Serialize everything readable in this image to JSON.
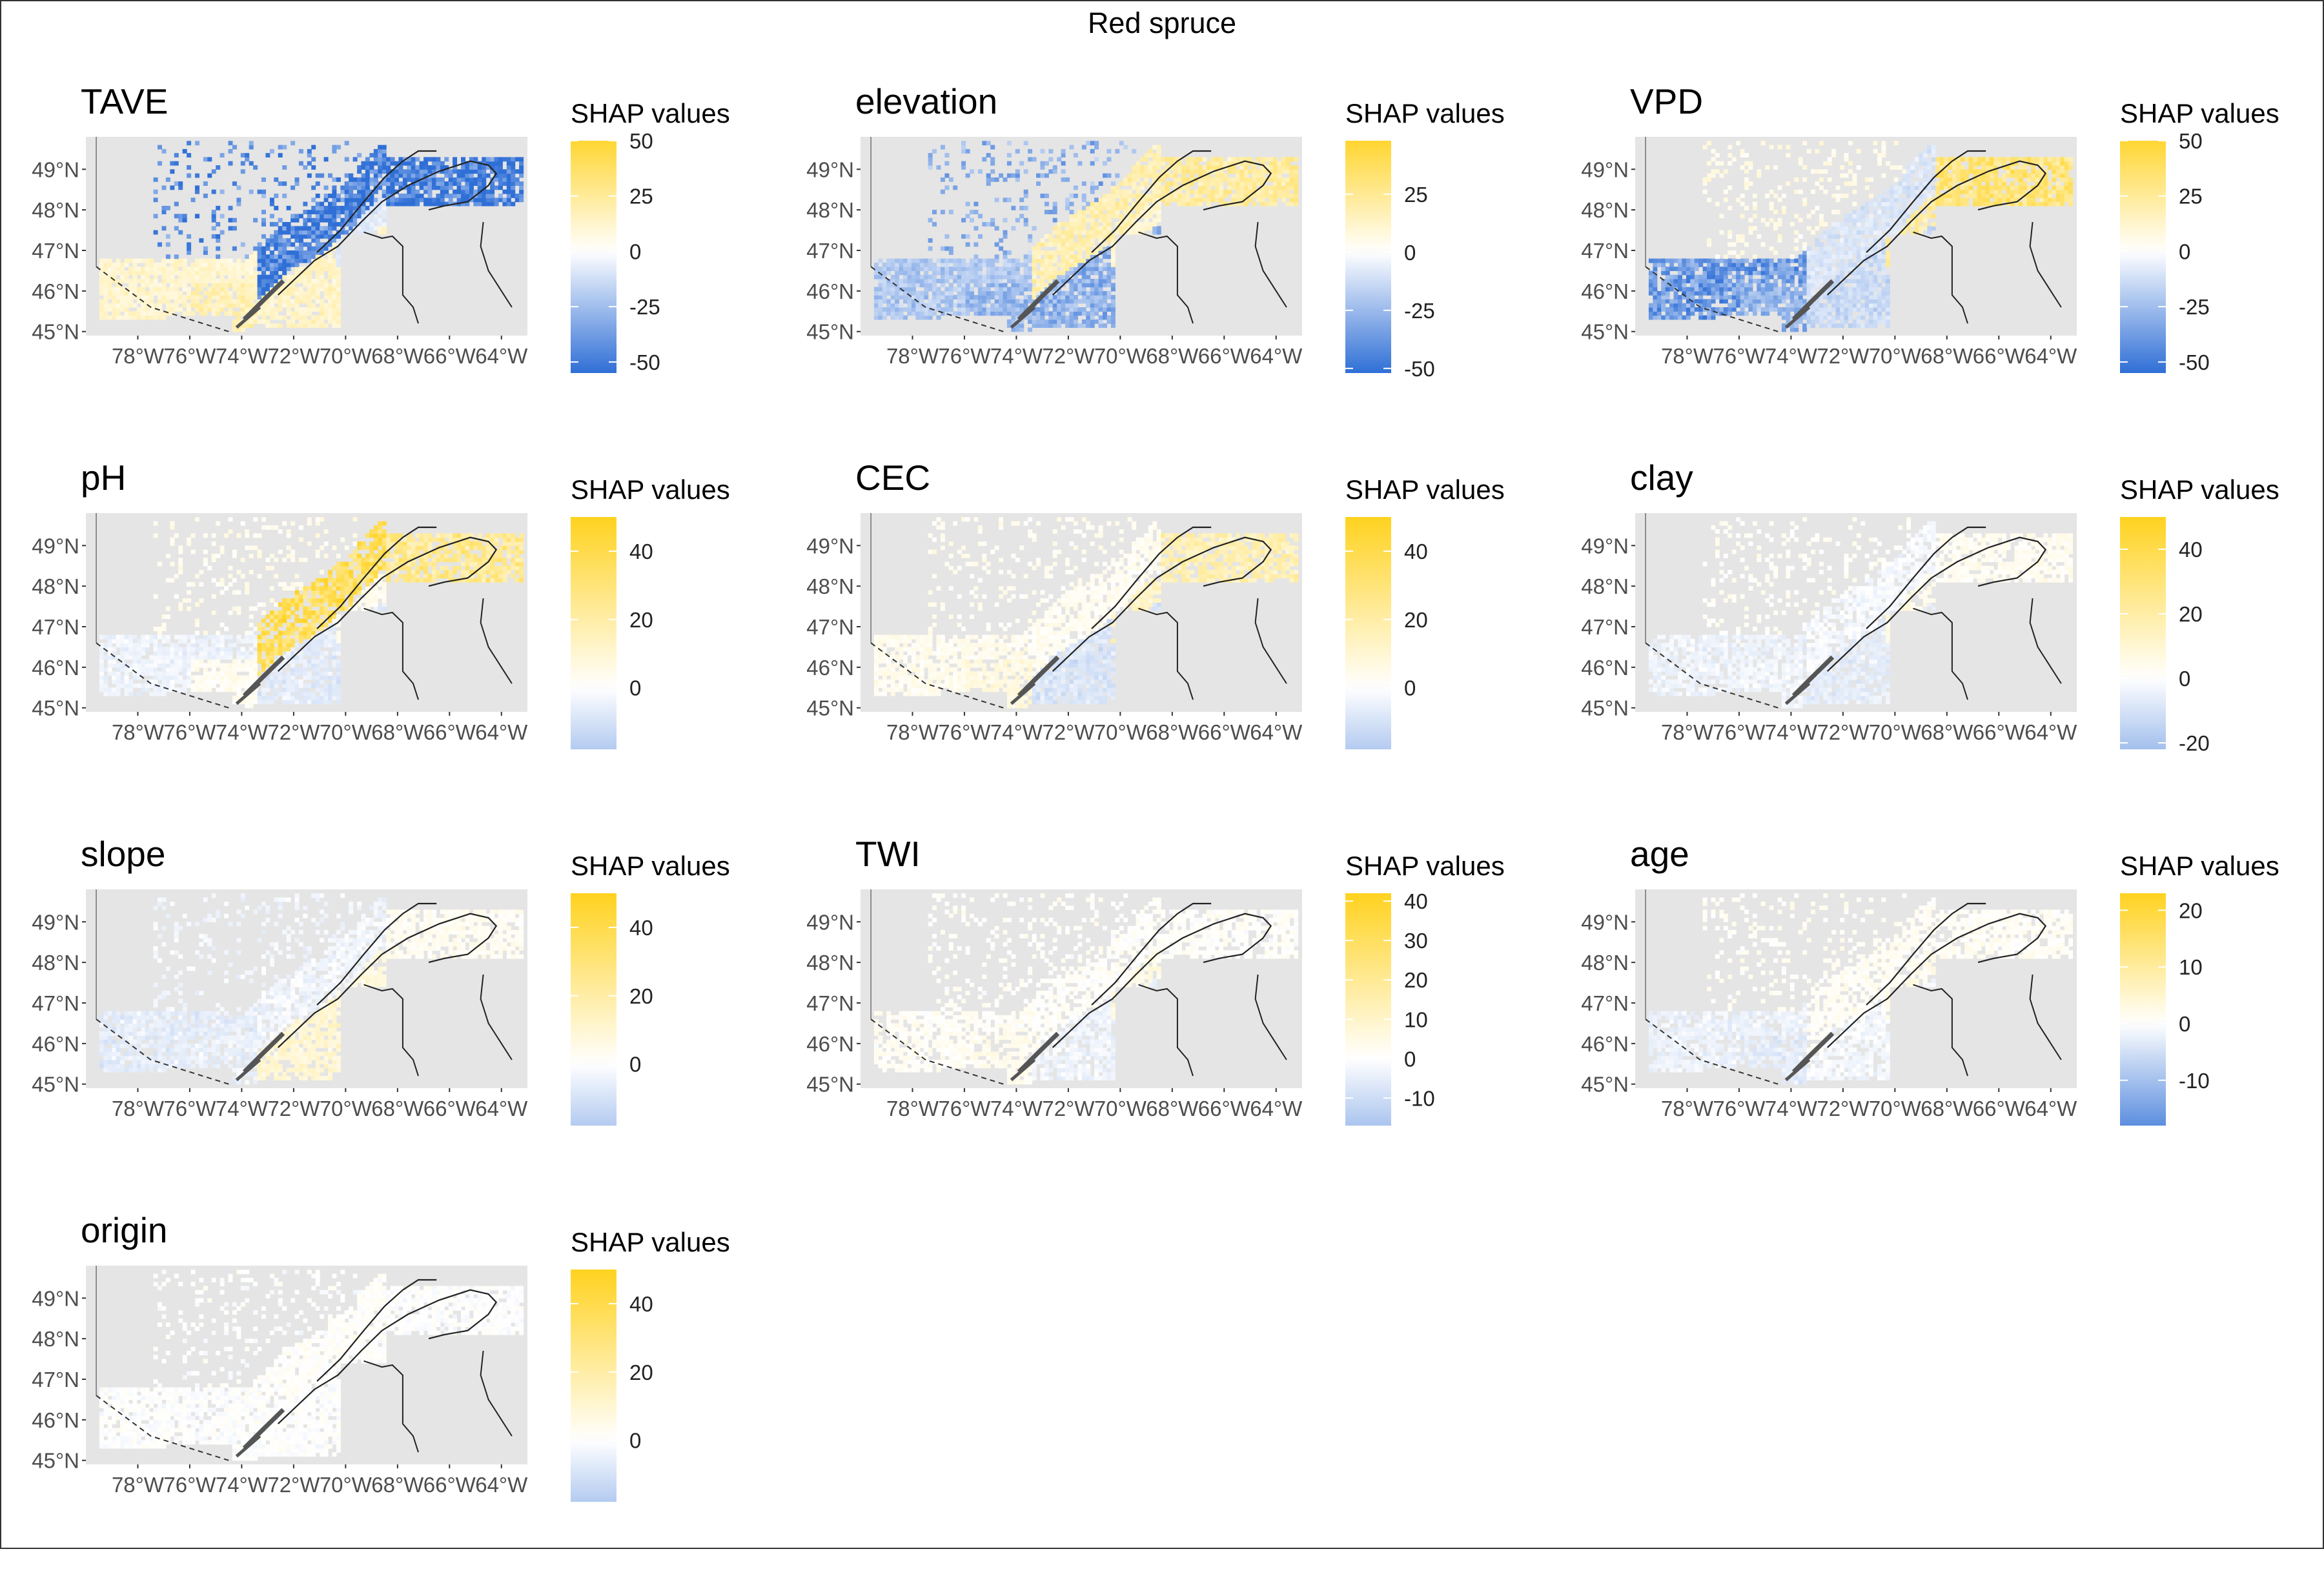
{
  "figure": {
    "title": "Red spruce",
    "legend_title": "SHAP values",
    "lat_labels": [
      "49°N",
      "48°N",
      "47°N",
      "46°N",
      "45°N"
    ],
    "lon_labels": [
      "78°W",
      "76°W",
      "74°W",
      "72°W",
      "70°W",
      "68°W",
      "66°W",
      "64°W"
    ],
    "colors": {
      "negative": "#2f6fd6",
      "zero": "#ffffff",
      "positive": "#ffd21f",
      "land_background": "#e5e5e5",
      "tick_text": "#4d4d4d"
    }
  },
  "chart_data": [
    {
      "type": "heatmap",
      "title": "TAVE",
      "legend_range": [
        -55,
        50
      ],
      "legend_ticks": [
        50,
        25,
        0,
        -25,
        -50
      ],
      "pattern": {
        "west": 12,
        "southwest": 18,
        "central_north": -48,
        "central_south": 14,
        "east_shore": -8,
        "gaspe": -50,
        "north_scatter": -42,
        "density": 0.85
      }
    },
    {
      "type": "heatmap",
      "title": "elevation",
      "legend_range": [
        -52,
        48
      ],
      "legend_ticks": [
        25,
        0,
        -25,
        -50
      ],
      "pattern": {
        "west": -20,
        "southwest": -25,
        "central_north": 18,
        "central_south": -28,
        "east_shore": 10,
        "gaspe": 22,
        "north_scatter": -28,
        "density": 0.85
      }
    },
    {
      "type": "heatmap",
      "title": "VPD",
      "legend_range": [
        -55,
        50
      ],
      "legend_ticks": [
        50,
        25,
        0,
        -25,
        -50
      ],
      "pattern": {
        "west": -38,
        "southwest": -28,
        "central_north": -10,
        "central_south": -14,
        "east_shore": 22,
        "gaspe": 32,
        "north_scatter": 6,
        "density": 0.85
      }
    },
    {
      "type": "heatmap",
      "title": "pH",
      "legend_range": [
        -18,
        50
      ],
      "legend_ticks": [
        40,
        20,
        0
      ],
      "pattern": {
        "west": -4,
        "southwest": 3,
        "central_north": 35,
        "central_south": -7,
        "east_shore": 4,
        "gaspe": 24,
        "north_scatter": 4,
        "density": 0.8
      }
    },
    {
      "type": "heatmap",
      "title": "CEC",
      "legend_range": [
        -18,
        50
      ],
      "legend_ticks": [
        40,
        20,
        0
      ],
      "pattern": {
        "west": 4,
        "southwest": 7,
        "central_north": 3,
        "central_south": -9,
        "east_shore": 13,
        "gaspe": 17,
        "north_scatter": 3,
        "density": 0.8
      }
    },
    {
      "type": "heatmap",
      "title": "clay",
      "legend_range": [
        -22,
        50
      ],
      "legend_ticks": [
        40,
        20,
        0,
        -20
      ],
      "pattern": {
        "west": -4,
        "southwest": -3,
        "central_north": -2,
        "central_south": -6,
        "east_shore": 5,
        "gaspe": 3,
        "north_scatter": 2,
        "density": 0.75
      }
    },
    {
      "type": "heatmap",
      "title": "slope",
      "legend_range": [
        -18,
        50
      ],
      "legend_ticks": [
        40,
        20,
        0
      ],
      "pattern": {
        "west": -6,
        "southwest": -5,
        "central_north": -3,
        "central_south": 10,
        "east_shore": 7,
        "gaspe": 3,
        "north_scatter": -3,
        "density": 0.78
      }
    },
    {
      "type": "heatmap",
      "title": "TWI",
      "legend_range": [
        -17,
        42
      ],
      "legend_ticks": [
        40,
        30,
        20,
        10,
        0,
        -10
      ],
      "pattern": {
        "west": 2,
        "southwest": 3,
        "central_north": 1,
        "central_south": -3,
        "east_shore": 5,
        "gaspe": 1,
        "north_scatter": 1,
        "density": 0.75
      }
    },
    {
      "type": "heatmap",
      "title": "age",
      "legend_range": [
        -18,
        23
      ],
      "legend_ticks": [
        20,
        10,
        0,
        -10
      ],
      "pattern": {
        "west": -2,
        "southwest": -3,
        "central_north": 1,
        "central_south": -1,
        "east_shore": 2,
        "gaspe": 1,
        "north_scatter": 1,
        "density": 0.75
      }
    },
    {
      "type": "heatmap",
      "title": "origin",
      "legend_range": [
        -18,
        50
      ],
      "legend_ticks": [
        40,
        20,
        0
      ],
      "pattern": {
        "west": 0,
        "southwest": 0,
        "central_north": 1,
        "central_south": 0,
        "east_shore": 0,
        "gaspe": 0,
        "north_scatter": 0,
        "density": 0.9
      }
    }
  ]
}
